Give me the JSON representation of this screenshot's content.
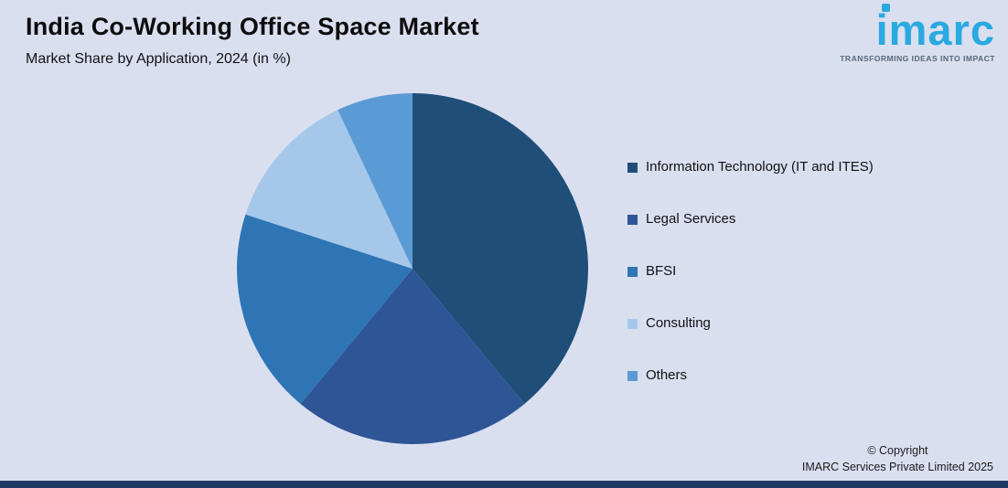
{
  "header": {
    "title": "India Co-Working Office Space Market",
    "subtitle": "Market Share by Application, 2024 (in %)"
  },
  "logo": {
    "brand": "imarc",
    "tagline": "TRANSFORMING IDEAS INTO IMPACT"
  },
  "chart_data": {
    "type": "pie",
    "title": "India Co-Working Office Space Market",
    "subtitle": "Market Share by Application, 2024 (in %)",
    "start_angle_deg": 0,
    "direction": "clockwise",
    "legend_position": "right",
    "slices": [
      {
        "label": "Information Technology (IT and ITES)",
        "value": 39,
        "color": "#1f4e79"
      },
      {
        "label": "Legal Services",
        "value": 22,
        "color": "#2e5596"
      },
      {
        "label": "BFSI",
        "value": 19,
        "color": "#2e75b6"
      },
      {
        "label": "Consulting",
        "value": 13,
        "color": "#a5c8ea"
      },
      {
        "label": "Others",
        "value": 7,
        "color": "#5b9bd5"
      }
    ]
  },
  "footer": {
    "copyright_line1": "© Copyright",
    "copyright_line2": "IMARC Services Private Limited 2025"
  },
  "colors": {
    "background": "#dadff0",
    "bottom_bar": "#1f3864",
    "accent": "#29a9e0"
  }
}
